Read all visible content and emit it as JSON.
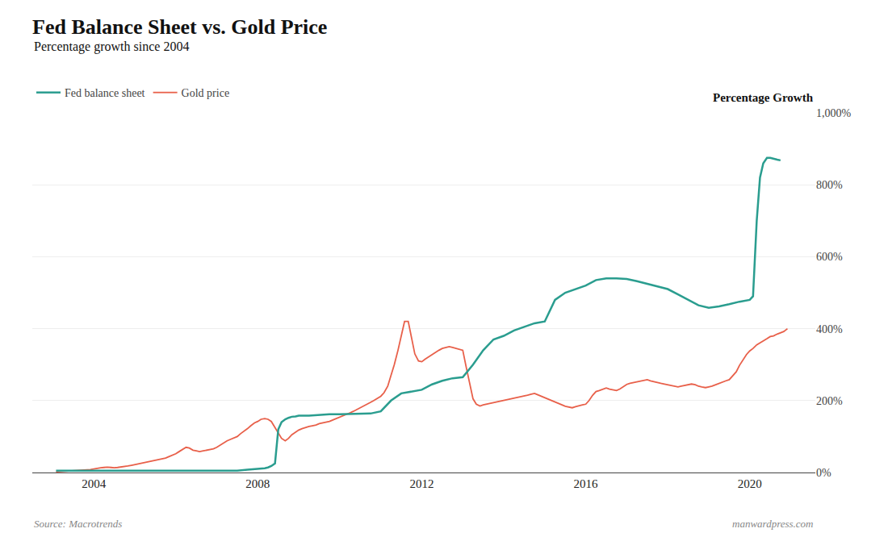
{
  "chart_data": {
    "type": "line",
    "title": "Fed Balance Sheet vs. Gold Price",
    "subtitle": "Percentage growth since 2004",
    "ylabel": "Percentage Growth",
    "annotations": [
      "Source: Macrotrends",
      "manwardpress.com"
    ],
    "legend": "upper left",
    "grid": true,
    "xlim": [
      2002.5,
      2021.6
    ],
    "xticks": [
      2004,
      2008,
      2012,
      2016,
      2020
    ],
    "ylim": [
      0,
      1000
    ],
    "yticks": [
      {
        "value": 0,
        "label": "0%"
      },
      {
        "value": 200,
        "label": "200%"
      },
      {
        "value": 400,
        "label": "400%"
      },
      {
        "value": 600,
        "label": "600%"
      },
      {
        "value": 800,
        "label": "800%"
      },
      {
        "value": 1000,
        "label": "1,000%"
      }
    ],
    "series": [
      {
        "name": "Fed balance sheet",
        "color": "#2a9d8f",
        "x": [
          2003.08,
          2003.25,
          2003.42,
          2003.58,
          2003.75,
          2003.92,
          2004.0,
          2004.25,
          2004.5,
          2004.75,
          2005.0,
          2005.25,
          2005.5,
          2005.75,
          2006.0,
          2006.25,
          2006.5,
          2006.75,
          2007.0,
          2007.25,
          2007.5,
          2007.75,
          2008.0,
          2008.08,
          2008.17,
          2008.25,
          2008.33,
          2008.42,
          2008.5,
          2008.58,
          2008.67,
          2008.75,
          2008.83,
          2008.92,
          2009.0,
          2009.25,
          2009.5,
          2009.75,
          2010.0,
          2010.25,
          2010.5,
          2010.75,
          2011.0,
          2011.25,
          2011.5,
          2011.75,
          2012.0,
          2012.25,
          2012.5,
          2012.75,
          2013.0,
          2013.25,
          2013.5,
          2013.75,
          2014.0,
          2014.25,
          2014.5,
          2014.75,
          2015.0,
          2015.25,
          2015.5,
          2015.75,
          2016.0,
          2016.25,
          2016.5,
          2016.75,
          2017.0,
          2017.25,
          2017.5,
          2017.75,
          2018.0,
          2018.25,
          2018.5,
          2018.75,
          2019.0,
          2019.25,
          2019.5,
          2019.75,
          2020.0,
          2020.08,
          2020.17,
          2020.25,
          2020.33,
          2020.42,
          2020.5,
          2020.58,
          2020.67,
          2020.75
        ],
        "values": [
          5,
          5,
          5,
          5,
          5,
          5,
          5,
          5,
          5,
          5,
          5,
          5,
          5,
          5,
          5,
          5,
          5,
          5,
          5,
          5,
          5,
          8,
          10,
          11,
          12,
          14,
          18,
          25,
          120,
          140,
          148,
          152,
          155,
          156,
          158,
          158,
          160,
          162,
          162,
          163,
          163,
          164,
          170,
          200,
          220,
          225,
          230,
          245,
          255,
          262,
          265,
          300,
          340,
          370,
          380,
          395,
          405,
          415,
          420,
          480,
          500,
          510,
          520,
          535,
          540,
          540,
          538,
          532,
          525,
          518,
          510,
          495,
          480,
          465,
          458,
          462,
          468,
          475,
          480,
          490,
          700,
          820,
          860,
          875,
          875,
          872,
          870,
          868
        ]
      },
      {
        "name": "Gold price",
        "color": "#e8604a",
        "x": [
          2003.08,
          2003.25,
          2003.42,
          2003.58,
          2003.75,
          2003.92,
          2004.0,
          2004.08,
          2004.17,
          2004.25,
          2004.33,
          2004.42,
          2004.5,
          2004.58,
          2004.67,
          2004.75,
          2004.83,
          2004.92,
          2005.0,
          2005.08,
          2005.17,
          2005.25,
          2005.33,
          2005.42,
          2005.5,
          2005.58,
          2005.67,
          2005.75,
          2005.83,
          2005.92,
          2006.0,
          2006.08,
          2006.17,
          2006.25,
          2006.33,
          2006.42,
          2006.5,
          2006.58,
          2006.67,
          2006.75,
          2006.83,
          2006.92,
          2007.0,
          2007.08,
          2007.17,
          2007.25,
          2007.33,
          2007.42,
          2007.5,
          2007.58,
          2007.67,
          2007.75,
          2007.83,
          2007.92,
          2008.0,
          2008.08,
          2008.17,
          2008.25,
          2008.33,
          2008.42,
          2008.5,
          2008.58,
          2008.67,
          2008.75,
          2008.83,
          2008.92,
          2009.0,
          2009.08,
          2009.17,
          2009.25,
          2009.33,
          2009.42,
          2009.5,
          2009.58,
          2009.67,
          2009.75,
          2009.83,
          2009.92,
          2010.0,
          2010.08,
          2010.17,
          2010.25,
          2010.33,
          2010.42,
          2010.5,
          2010.58,
          2010.67,
          2010.75,
          2010.83,
          2010.92,
          2011.0,
          2011.08,
          2011.17,
          2011.25,
          2011.33,
          2011.42,
          2011.5,
          2011.58,
          2011.67,
          2011.75,
          2011.83,
          2011.92,
          2012.0,
          2012.08,
          2012.17,
          2012.25,
          2012.33,
          2012.42,
          2012.5,
          2012.58,
          2012.67,
          2012.75,
          2012.83,
          2012.92,
          2013.0,
          2013.08,
          2013.17,
          2013.25,
          2013.33,
          2013.42,
          2013.5,
          2013.58,
          2013.67,
          2013.75,
          2013.83,
          2013.92,
          2014.0,
          2014.08,
          2014.17,
          2014.25,
          2014.33,
          2014.42,
          2014.5,
          2014.58,
          2014.67,
          2014.75,
          2014.83,
          2014.92,
          2015.0,
          2015.08,
          2015.17,
          2015.25,
          2015.33,
          2015.42,
          2015.5,
          2015.58,
          2015.67,
          2015.75,
          2015.83,
          2015.92,
          2016.0,
          2016.08,
          2016.17,
          2016.25,
          2016.33,
          2016.42,
          2016.5,
          2016.58,
          2016.67,
          2016.75,
          2016.83,
          2016.92,
          2017.0,
          2017.08,
          2017.17,
          2017.25,
          2017.33,
          2017.42,
          2017.5,
          2017.58,
          2017.67,
          2017.75,
          2017.83,
          2017.92,
          2018.0,
          2018.08,
          2018.17,
          2018.25,
          2018.33,
          2018.42,
          2018.5,
          2018.58,
          2018.67,
          2018.75,
          2018.83,
          2018.92,
          2019.0,
          2019.08,
          2019.17,
          2019.25,
          2019.33,
          2019.42,
          2019.5,
          2019.58,
          2019.67,
          2019.75,
          2019.83,
          2019.92,
          2020.0,
          2020.08,
          2020.17,
          2020.25,
          2020.33,
          2020.42,
          2020.5,
          2020.58,
          2020.67,
          2020.75,
          2020.83,
          2020.92
        ],
        "values": [
          2,
          3,
          4,
          5,
          6,
          8,
          10,
          12,
          13,
          14,
          15,
          14,
          13,
          14,
          15,
          16,
          18,
          20,
          22,
          24,
          26,
          28,
          30,
          32,
          34,
          36,
          38,
          40,
          44,
          48,
          52,
          58,
          65,
          70,
          68,
          62,
          60,
          58,
          60,
          62,
          64,
          66,
          70,
          76,
          82,
          88,
          92,
          96,
          100,
          108,
          115,
          122,
          130,
          138,
          142,
          148,
          150,
          148,
          142,
          125,
          108,
          95,
          88,
          95,
          105,
          112,
          118,
          122,
          126,
          128,
          130,
          132,
          136,
          138,
          140,
          142,
          146,
          150,
          155,
          158,
          162,
          166,
          170,
          175,
          180,
          185,
          190,
          195,
          200,
          206,
          212,
          222,
          240,
          270,
          300,
          340,
          380,
          420,
          420,
          375,
          330,
          310,
          308,
          315,
          322,
          328,
          335,
          340,
          345,
          348,
          350,
          348,
          345,
          342,
          340,
          295,
          245,
          205,
          190,
          185,
          188,
          190,
          192,
          194,
          196,
          198,
          200,
          202,
          204,
          206,
          208,
          210,
          212,
          215,
          218,
          220,
          216,
          212,
          208,
          204,
          200,
          196,
          192,
          188,
          184,
          182,
          180,
          183,
          186,
          188,
          190,
          200,
          215,
          225,
          228,
          232,
          235,
          232,
          230,
          228,
          232,
          240,
          245,
          248,
          250,
          252,
          254,
          256,
          258,
          255,
          252,
          250,
          248,
          246,
          244,
          242,
          240,
          238,
          240,
          242,
          244,
          246,
          244,
          240,
          238,
          236,
          238,
          240,
          244,
          248,
          252,
          255,
          258,
          268,
          280,
          298,
          312,
          328,
          338,
          345,
          355,
          360,
          365,
          372,
          378,
          380,
          385,
          388,
          392,
          400
        ]
      }
    ]
  }
}
